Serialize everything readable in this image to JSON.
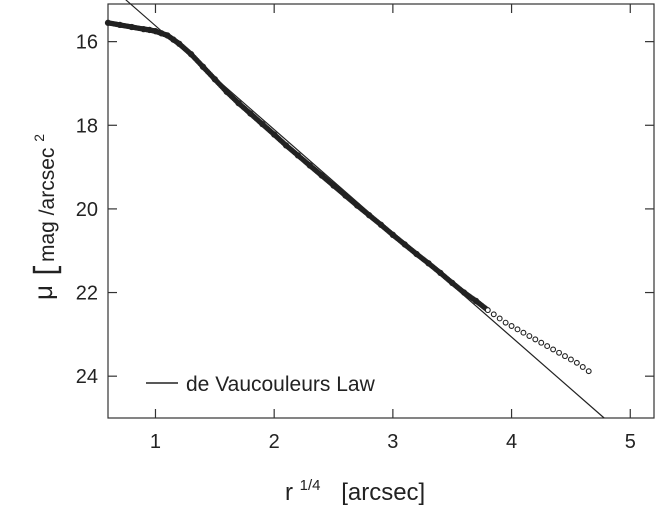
{
  "chart_data": {
    "type": "scatter",
    "x_tick_labels": [
      "1",
      "2",
      "3",
      "4",
      "5"
    ],
    "x_ticks": [
      1,
      2,
      3,
      4,
      5
    ],
    "y_tick_labels": [
      "16",
      "18",
      "20",
      "22",
      "24"
    ],
    "y_ticks": [
      16,
      18,
      20,
      22,
      24
    ],
    "xlim": [
      0.6,
      5.2
    ],
    "ylim": [
      25.0,
      15.1
    ],
    "y_inverted": true,
    "grid": false,
    "legend": {
      "placement": "bottom-left",
      "label": "de Vaucouleurs Law"
    },
    "xlabel": {
      "main": "r",
      "sup": "1/4",
      "units": "[arcsec]"
    },
    "ylabel": {
      "symbol": "μ",
      "units": "mag /arcsec",
      "sup": "2"
    },
    "fit_line": {
      "x": [
        0.75,
        4.78
      ],
      "y": [
        15.0,
        25.0
      ]
    },
    "series": [
      {
        "x": [
          0.6,
          0.7,
          0.8,
          0.9,
          0.95,
          1.0,
          1.05,
          1.1,
          1.15,
          1.2,
          1.3,
          1.4,
          1.5,
          1.6,
          1.7,
          1.8,
          1.9,
          2.0,
          2.1,
          2.2,
          2.3,
          2.4,
          2.5,
          2.6,
          2.7,
          2.8,
          2.9,
          3.0,
          3.1,
          3.2,
          3.3,
          3.4,
          3.5,
          3.6,
          3.7,
          3.8,
          3.85,
          3.9,
          3.95,
          4.0,
          4.05,
          4.1,
          4.15,
          4.2,
          4.25,
          4.3,
          4.35,
          4.4,
          4.45,
          4.5,
          4.55,
          4.6,
          4.65
        ],
        "y": [
          15.55,
          15.6,
          15.65,
          15.7,
          15.72,
          15.75,
          15.8,
          15.85,
          15.95,
          16.05,
          16.3,
          16.6,
          16.9,
          17.2,
          17.47,
          17.72,
          17.97,
          18.22,
          18.48,
          18.72,
          18.96,
          19.2,
          19.44,
          19.68,
          19.92,
          20.15,
          20.38,
          20.62,
          20.85,
          21.08,
          21.3,
          21.53,
          21.77,
          22.0,
          22.2,
          22.42,
          22.52,
          22.62,
          22.72,
          22.8,
          22.88,
          22.96,
          23.04,
          23.12,
          23.2,
          23.28,
          23.36,
          23.44,
          23.52,
          23.6,
          23.68,
          23.78,
          23.88
        ]
      }
    ]
  }
}
